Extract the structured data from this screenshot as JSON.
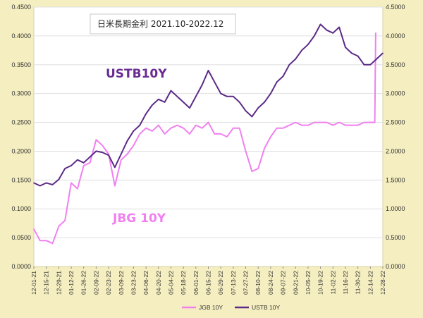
{
  "chart_data": {
    "type": "line",
    "title": "日米長期金利 2021.10-2022.12",
    "colors": {
      "plot_bg": "#ffffff",
      "outer_bg": "#f5eec0",
      "jgb": "#f080f0",
      "ustb": "#5b2a86",
      "grid": "#e0e0e0"
    },
    "y_left": {
      "ylim": [
        0,
        0.45
      ],
      "ticks": [
        "0.0000",
        "0.0500",
        "0.1000",
        "0.1500",
        "0.2000",
        "0.2500",
        "0.3000",
        "0.3500",
        "0.4000",
        "0.4500"
      ]
    },
    "y_right": {
      "ylim": [
        0,
        4.5
      ],
      "ticks": [
        "0.0000",
        "0.5000",
        "1.0000",
        "1.5000",
        "2.0000",
        "2.5000",
        "3.0000",
        "3.5000",
        "4.0000",
        "4.5000"
      ]
    },
    "x_ticks": [
      "12-01-21",
      "12-15-21",
      "12-29-21",
      "01-12-22",
      "01-26-22",
      "02-09-22",
      "02-23-22",
      "03-09-22",
      "03-23-22",
      "04-06-22",
      "04-20-22",
      "05-04-22",
      "05-18-22",
      "06-01-22",
      "06-15-22",
      "06-29-22",
      "07-13-22",
      "07-27-22",
      "08-10-22",
      "08-24-22",
      "09-07-22",
      "09-21-22",
      "10-05-22",
      "10-19-22",
      "11-02-22",
      "11-16-22",
      "11-30-22",
      "12-14-22",
      "12-28-22"
    ],
    "annotations": {
      "ustb": "USTB10Y",
      "jgb": "JBG 10Y"
    },
    "series": [
      {
        "name": "JGB 10Y",
        "axis": "left",
        "x": [
          "12-01-21",
          "12-08-21",
          "12-15-21",
          "12-22-21",
          "12-29-21",
          "01-05-22",
          "01-12-22",
          "01-19-22",
          "01-26-22",
          "02-02-22",
          "02-09-22",
          "02-16-22",
          "02-23-22",
          "03-02-22",
          "03-09-22",
          "03-16-22",
          "03-23-22",
          "03-30-22",
          "04-06-22",
          "04-13-22",
          "04-20-22",
          "04-27-22",
          "05-04-22",
          "05-11-22",
          "05-18-22",
          "05-25-22",
          "06-01-22",
          "06-08-22",
          "06-15-22",
          "06-22-22",
          "06-29-22",
          "07-06-22",
          "07-13-22",
          "07-20-22",
          "07-27-22",
          "08-03-22",
          "08-10-22",
          "08-17-22",
          "08-24-22",
          "08-31-22",
          "09-07-22",
          "09-14-22",
          "09-21-22",
          "09-28-22",
          "10-05-22",
          "10-12-22",
          "10-19-22",
          "10-26-22",
          "11-02-22",
          "11-09-22",
          "11-16-22",
          "11-23-22",
          "11-30-22",
          "12-07-22",
          "12-14-22",
          "12-19-22",
          "12-20-22"
        ],
        "values": [
          0.065,
          0.045,
          0.045,
          0.04,
          0.07,
          0.08,
          0.145,
          0.135,
          0.175,
          0.18,
          0.22,
          0.21,
          0.195,
          0.14,
          0.185,
          0.195,
          0.21,
          0.23,
          0.24,
          0.235,
          0.245,
          0.23,
          0.24,
          0.245,
          0.24,
          0.23,
          0.245,
          0.24,
          0.25,
          0.23,
          0.23,
          0.225,
          0.24,
          0.24,
          0.2,
          0.165,
          0.17,
          0.205,
          0.225,
          0.24,
          0.24,
          0.245,
          0.25,
          0.245,
          0.245,
          0.25,
          0.25,
          0.25,
          0.245,
          0.25,
          0.245,
          0.245,
          0.245,
          0.25,
          0.25,
          0.25,
          0.405
        ]
      },
      {
        "name": "USTB 10Y",
        "axis": "right",
        "x": [
          "12-01-21",
          "12-08-21",
          "12-15-21",
          "12-22-21",
          "12-29-21",
          "01-05-22",
          "01-12-22",
          "01-19-22",
          "01-26-22",
          "02-02-22",
          "02-09-22",
          "02-16-22",
          "02-23-22",
          "03-02-22",
          "03-09-22",
          "03-16-22",
          "03-23-22",
          "03-30-22",
          "04-06-22",
          "04-13-22",
          "04-20-22",
          "04-27-22",
          "05-04-22",
          "05-11-22",
          "05-18-22",
          "05-25-22",
          "06-01-22",
          "06-08-22",
          "06-15-22",
          "06-22-22",
          "06-29-22",
          "07-06-22",
          "07-13-22",
          "07-20-22",
          "07-27-22",
          "08-03-22",
          "08-10-22",
          "08-17-22",
          "08-24-22",
          "08-31-22",
          "09-07-22",
          "09-14-22",
          "09-21-22",
          "09-28-22",
          "10-05-22",
          "10-12-22",
          "10-19-22",
          "10-26-22",
          "11-02-22",
          "11-09-22",
          "11-16-22",
          "11-23-22",
          "11-30-22",
          "12-07-22",
          "12-14-22",
          "12-21-22",
          "12-28-22"
        ],
        "values": [
          1.45,
          1.4,
          1.45,
          1.42,
          1.51,
          1.7,
          1.75,
          1.85,
          1.8,
          1.9,
          2.0,
          1.98,
          1.93,
          1.72,
          1.95,
          2.18,
          2.35,
          2.45,
          2.65,
          2.8,
          2.9,
          2.85,
          3.05,
          2.95,
          2.85,
          2.75,
          2.95,
          3.15,
          3.4,
          3.2,
          3.0,
          2.95,
          2.95,
          2.85,
          2.7,
          2.6,
          2.75,
          2.85,
          3.0,
          3.2,
          3.3,
          3.5,
          3.6,
          3.75,
          3.85,
          4.0,
          4.2,
          4.1,
          4.05,
          4.15,
          3.8,
          3.7,
          3.65,
          3.5,
          3.5,
          3.6,
          3.7
        ]
      }
    ]
  }
}
